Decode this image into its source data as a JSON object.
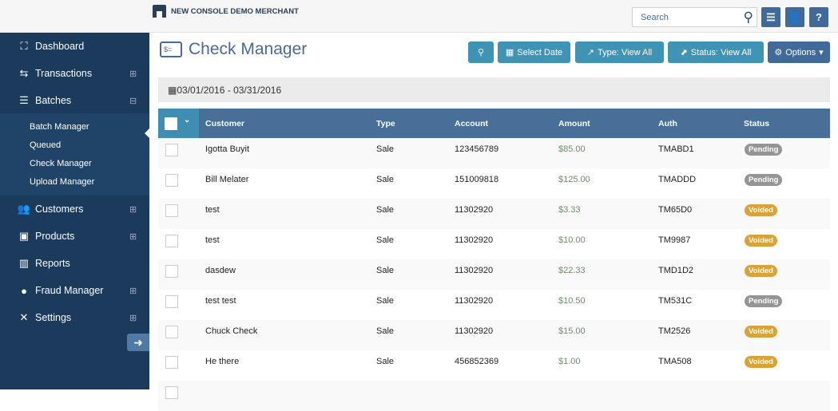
{
  "header": {
    "merchant": "NEW CONSOLE DEMO MERCHANT",
    "search_placeholder": "Search",
    "menu_icon": "menu-icon",
    "user_icon": "user-icon",
    "help_label": "?"
  },
  "sidebar": {
    "items": [
      {
        "label": "Dashboard",
        "icon": "chart-icon",
        "glyph": "⛶",
        "expand": ""
      },
      {
        "label": "Transactions",
        "icon": "arrows-icon",
        "glyph": "⇆",
        "expand": "⊞"
      },
      {
        "label": "Batches",
        "icon": "stack-icon",
        "glyph": "☰",
        "expand": "⊟"
      },
      {
        "label": "Customers",
        "icon": "users-icon",
        "glyph": "👥",
        "expand": "⊞"
      },
      {
        "label": "Products",
        "icon": "box-icon",
        "glyph": "▣",
        "expand": "⊞"
      },
      {
        "label": "Reports",
        "icon": "bar-chart-icon",
        "glyph": "▥",
        "expand": ""
      },
      {
        "label": "Fraud Manager",
        "icon": "shield-icon",
        "glyph": "●",
        "expand": "⊞"
      },
      {
        "label": "Settings",
        "icon": "tools-icon",
        "glyph": "✕",
        "expand": "⊞"
      }
    ],
    "subitems": [
      "Batch Manager",
      "Queued",
      "Check Manager",
      "Upload Manager"
    ],
    "active_subitem": "Check Manager"
  },
  "page": {
    "title": "Check Manager",
    "date_range": "03/01/2016 - 03/31/2016"
  },
  "toolbar": {
    "select_date": "Select Date",
    "type": "Type: View All",
    "status": "Status: View All",
    "options": "Options"
  },
  "table": {
    "columns": [
      "Customer",
      "Type",
      "Account",
      "Amount",
      "Auth",
      "Status"
    ],
    "rows": [
      [
        "Igotta Buyit",
        "Sale",
        "123456789",
        "$85.00",
        "TMABD1",
        "Pending"
      ],
      [
        "Bill Melater",
        "Sale",
        "151009818",
        "$125.00",
        "TMADDD",
        "Pending"
      ],
      [
        "test",
        "Sale",
        "11302920",
        "$3.33",
        "TM65D0",
        "Voided"
      ],
      [
        "test",
        "Sale",
        "11302920",
        "$10.00",
        "TM9987",
        "Voided"
      ],
      [
        "dasdew",
        "Sale",
        "11302920",
        "$22.33",
        "TMD1D2",
        "Voided"
      ],
      [
        "test test",
        "Sale",
        "11302920",
        "$10.50",
        "TM531C",
        "Pending"
      ],
      [
        "Chuck Check",
        "Sale",
        "11302920",
        "$15.00",
        "TM2526",
        "Voided"
      ],
      [
        "He there",
        "Sale",
        "456852369",
        "$1.00",
        "TMA508",
        "Voided"
      ]
    ]
  },
  "colors": {
    "sidebar": "#1b3a5c",
    "button": "#3f93b5",
    "options": "#3f6a9a",
    "pending": "#959595",
    "voided": "#d9a33a",
    "amount": "#6b8e6b"
  }
}
